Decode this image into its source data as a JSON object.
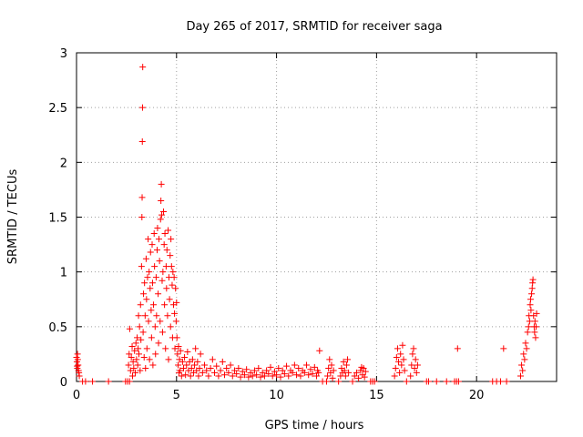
{
  "chart_data": {
    "type": "scatter",
    "title": "Day 265 of 2017, SRMTID for receiver saga",
    "xlabel": "GPS time / hours",
    "ylabel": "SRMTID / TECUs",
    "xlim": [
      0,
      24
    ],
    "ylim": [
      0,
      3
    ],
    "xticks": [
      0,
      5,
      10,
      15,
      20
    ],
    "xtick_labels": [
      "0",
      "5",
      "10",
      "15",
      "20"
    ],
    "yticks": [
      0,
      0.5,
      1,
      1.5,
      2,
      2.5,
      3
    ],
    "ytick_labels": [
      "0",
      "0.5",
      "1",
      "1.5",
      "2",
      "2.5",
      "3"
    ],
    "grid": true,
    "marker": "plus",
    "series": [
      {
        "name": "SRMTID",
        "color": "#ff0000",
        "points": [
          [
            0.0,
            0.22
          ],
          [
            0.02,
            0.18
          ],
          [
            0.04,
            0.12
          ],
          [
            0.06,
            0.2
          ],
          [
            0.08,
            0.15
          ],
          [
            0.1,
            0.1
          ],
          [
            0.12,
            0.08
          ],
          [
            0.14,
            0.05
          ],
          [
            0.05,
            0.25
          ],
          [
            0.03,
            0.14
          ],
          [
            0.3,
            0.0
          ],
          [
            0.45,
            0.0
          ],
          [
            0.8,
            0.0
          ],
          [
            1.6,
            0.0
          ],
          [
            2.45,
            0.0
          ],
          [
            2.55,
            0.0
          ],
          [
            2.65,
            0.0
          ],
          [
            2.6,
            0.15
          ],
          [
            2.63,
            0.25
          ],
          [
            2.66,
            0.48
          ],
          [
            2.7,
            0.1
          ],
          [
            2.74,
            0.22
          ],
          [
            2.78,
            0.32
          ],
          [
            2.8,
            0.05
          ],
          [
            2.83,
            0.18
          ],
          [
            2.86,
            0.12
          ],
          [
            2.9,
            0.28
          ],
          [
            2.94,
            0.08
          ],
          [
            2.97,
            0.35
          ],
          [
            3.0,
            0.2
          ],
          [
            3.03,
            0.4
          ],
          [
            3.06,
            0.15
          ],
          [
            3.08,
            0.3
          ],
          [
            3.1,
            0.6
          ],
          [
            3.12,
            0.25
          ],
          [
            3.15,
            0.5
          ],
          [
            3.18,
            0.1
          ],
          [
            3.2,
            0.7
          ],
          [
            3.22,
            0.38
          ],
          [
            3.25,
            1.05
          ],
          [
            3.27,
            1.5
          ],
          [
            3.28,
            1.68
          ],
          [
            3.29,
            2.19
          ],
          [
            3.3,
            2.5
          ],
          [
            3.31,
            2.87
          ],
          [
            3.33,
            0.45
          ],
          [
            3.35,
            0.8
          ],
          [
            3.38,
            0.22
          ],
          [
            3.4,
            0.9
          ],
          [
            3.43,
            0.6
          ],
          [
            3.45,
            0.12
          ],
          [
            3.48,
            1.12
          ],
          [
            3.5,
            0.75
          ],
          [
            3.52,
            0.3
          ],
          [
            3.55,
            0.95
          ],
          [
            3.58,
            1.3
          ],
          [
            3.6,
            0.55
          ],
          [
            3.63,
            1.0
          ],
          [
            3.65,
            0.2
          ],
          [
            3.68,
            0.85
          ],
          [
            3.7,
            1.18
          ],
          [
            3.73,
            0.65
          ],
          [
            3.75,
            0.4
          ],
          [
            3.78,
            1.25
          ],
          [
            3.8,
            0.9
          ],
          [
            3.82,
            0.15
          ],
          [
            3.85,
            0.7
          ],
          [
            3.88,
            1.35
          ],
          [
            3.9,
            1.05
          ],
          [
            3.93,
            0.5
          ],
          [
            3.95,
            0.25
          ],
          [
            3.98,
            0.95
          ],
          [
            4.0,
            0.6
          ],
          [
            4.03,
            1.2
          ],
          [
            4.05,
            1.4
          ],
          [
            4.08,
            0.8
          ],
          [
            4.1,
            0.35
          ],
          [
            4.12,
            1.3
          ],
          [
            4.15,
            1.1
          ],
          [
            4.18,
            0.55
          ],
          [
            4.2,
            1.48
          ],
          [
            4.22,
            1.65
          ],
          [
            4.24,
            1.8
          ],
          [
            4.26,
            1.52
          ],
          [
            4.28,
            0.92
          ],
          [
            4.3,
            0.45
          ],
          [
            4.32,
            1.0
          ],
          [
            4.35,
            1.55
          ],
          [
            4.38,
            1.25
          ],
          [
            4.4,
            0.7
          ],
          [
            4.42,
            1.35
          ],
          [
            4.45,
            0.3
          ],
          [
            4.48,
            1.05
          ],
          [
            4.5,
            0.85
          ],
          [
            4.52,
            1.2
          ],
          [
            4.55,
            0.6
          ],
          [
            4.58,
            1.38
          ],
          [
            4.6,
            0.2
          ],
          [
            4.62,
            0.95
          ],
          [
            4.65,
            0.75
          ],
          [
            4.68,
            1.15
          ],
          [
            4.7,
            0.5
          ],
          [
            4.72,
            1.3
          ],
          [
            4.75,
            1.05
          ],
          [
            4.78,
            0.88
          ],
          [
            4.8,
            0.4
          ],
          [
            4.82,
            1.0
          ],
          [
            4.85,
            0.7
          ],
          [
            4.88,
            0.95
          ],
          [
            4.9,
            0.62
          ],
          [
            4.92,
            0.3
          ],
          [
            4.95,
            0.85
          ],
          [
            4.98,
            0.55
          ],
          [
            5.0,
            0.72
          ],
          [
            5.02,
            0.4
          ],
          [
            5.05,
            0.25
          ],
          [
            5.08,
            0.15
          ],
          [
            5.1,
            0.32
          ],
          [
            5.12,
            0.08
          ],
          [
            5.15,
            0.2
          ],
          [
            5.18,
            0.1
          ],
          [
            5.2,
            0.28
          ],
          [
            5.25,
            0.05
          ],
          [
            5.3,
            0.18
          ],
          [
            5.35,
            0.12
          ],
          [
            5.4,
            0.22
          ],
          [
            5.45,
            0.06
          ],
          [
            5.5,
            0.15
          ],
          [
            5.55,
            0.27
          ],
          [
            5.6,
            0.1
          ],
          [
            5.65,
            0.18
          ],
          [
            5.7,
            0.05
          ],
          [
            5.75,
            0.12
          ],
          [
            5.8,
            0.2
          ],
          [
            5.85,
            0.08
          ],
          [
            5.9,
            0.15
          ],
          [
            5.95,
            0.3
          ],
          [
            6.0,
            0.1
          ],
          [
            6.05,
            0.18
          ],
          [
            6.1,
            0.05
          ],
          [
            6.15,
            0.12
          ],
          [
            6.2,
            0.25
          ],
          [
            6.3,
            0.08
          ],
          [
            6.4,
            0.15
          ],
          [
            6.5,
            0.1
          ],
          [
            6.6,
            0.05
          ],
          [
            6.7,
            0.12
          ],
          [
            6.8,
            0.2
          ],
          [
            6.9,
            0.08
          ],
          [
            7.0,
            0.14
          ],
          [
            7.1,
            0.05
          ],
          [
            7.2,
            0.1
          ],
          [
            7.3,
            0.18
          ],
          [
            7.4,
            0.06
          ],
          [
            7.5,
            0.12
          ],
          [
            7.6,
            0.08
          ],
          [
            7.7,
            0.15
          ],
          [
            7.8,
            0.05
          ],
          [
            7.9,
            0.1
          ],
          [
            8.0,
            0.07
          ],
          [
            8.1,
            0.12
          ],
          [
            8.2,
            0.04
          ],
          [
            8.3,
            0.09
          ],
          [
            8.4,
            0.06
          ],
          [
            8.5,
            0.11
          ],
          [
            8.6,
            0.04
          ],
          [
            8.7,
            0.08
          ],
          [
            8.8,
            0.05
          ],
          [
            8.9,
            0.1
          ],
          [
            9.0,
            0.06
          ],
          [
            9.1,
            0.12
          ],
          [
            9.2,
            0.04
          ],
          [
            9.3,
            0.08
          ],
          [
            9.4,
            0.05
          ],
          [
            9.5,
            0.1
          ],
          [
            9.6,
            0.07
          ],
          [
            9.7,
            0.13
          ],
          [
            9.8,
            0.05
          ],
          [
            9.9,
            0.09
          ],
          [
            10.0,
            0.06
          ],
          [
            10.1,
            0.12
          ],
          [
            10.2,
            0.04
          ],
          [
            10.3,
            0.1
          ],
          [
            10.4,
            0.07
          ],
          [
            10.5,
            0.14
          ],
          [
            10.6,
            0.05
          ],
          [
            10.7,
            0.1
          ],
          [
            10.8,
            0.08
          ],
          [
            10.9,
            0.15
          ],
          [
            11.0,
            0.06
          ],
          [
            11.1,
            0.12
          ],
          [
            11.2,
            0.05
          ],
          [
            11.3,
            0.1
          ],
          [
            11.4,
            0.08
          ],
          [
            11.5,
            0.15
          ],
          [
            11.6,
            0.06
          ],
          [
            11.7,
            0.11
          ],
          [
            11.8,
            0.07
          ],
          [
            11.9,
            0.13
          ],
          [
            12.0,
            0.05
          ],
          [
            12.05,
            0.1
          ],
          [
            12.1,
            0.08
          ],
          [
            12.15,
            0.28
          ],
          [
            12.3,
            0.0
          ],
          [
            12.5,
            0.0
          ],
          [
            12.55,
            0.05
          ],
          [
            12.6,
            0.12
          ],
          [
            12.65,
            0.2
          ],
          [
            12.7,
            0.08
          ],
          [
            12.75,
            0.15
          ],
          [
            12.8,
            0.03
          ],
          [
            12.85,
            0.1
          ],
          [
            13.1,
            0.0
          ],
          [
            13.2,
            0.05
          ],
          [
            13.25,
            0.12
          ],
          [
            13.3,
            0.08
          ],
          [
            13.35,
            0.18
          ],
          [
            13.4,
            0.1
          ],
          [
            13.45,
            0.05
          ],
          [
            13.5,
            0.15
          ],
          [
            13.55,
            0.2
          ],
          [
            13.6,
            0.08
          ],
          [
            13.8,
            0.0
          ],
          [
            13.9,
            0.05
          ],
          [
            14.0,
            0.08
          ],
          [
            14.1,
            0.03
          ],
          [
            14.2,
            0.1
          ],
          [
            14.25,
            0.13
          ],
          [
            14.3,
            0.06
          ],
          [
            14.35,
            0.12
          ],
          [
            14.4,
            0.04
          ],
          [
            14.45,
            0.09
          ],
          [
            14.7,
            0.0
          ],
          [
            14.8,
            0.0
          ],
          [
            14.9,
            0.0
          ],
          [
            15.9,
            0.05
          ],
          [
            15.95,
            0.12
          ],
          [
            16.0,
            0.22
          ],
          [
            16.05,
            0.3
          ],
          [
            16.1,
            0.18
          ],
          [
            16.15,
            0.08
          ],
          [
            16.2,
            0.25
          ],
          [
            16.25,
            0.15
          ],
          [
            16.3,
            0.33
          ],
          [
            16.35,
            0.2
          ],
          [
            16.4,
            0.1
          ],
          [
            16.5,
            0.0
          ],
          [
            16.7,
            0.05
          ],
          [
            16.75,
            0.15
          ],
          [
            16.8,
            0.25
          ],
          [
            16.85,
            0.3
          ],
          [
            16.9,
            0.12
          ],
          [
            16.95,
            0.2
          ],
          [
            17.0,
            0.08
          ],
          [
            17.05,
            0.15
          ],
          [
            17.5,
            0.0
          ],
          [
            17.6,
            0.0
          ],
          [
            18.0,
            0.0
          ],
          [
            18.5,
            0.0
          ],
          [
            18.9,
            0.0
          ],
          [
            19.0,
            0.0
          ],
          [
            19.05,
            0.3
          ],
          [
            19.1,
            0.0
          ],
          [
            20.8,
            0.0
          ],
          [
            21.0,
            0.0
          ],
          [
            21.2,
            0.0
          ],
          [
            21.35,
            0.3
          ],
          [
            21.5,
            0.0
          ],
          [
            22.2,
            0.05
          ],
          [
            22.25,
            0.15
          ],
          [
            22.3,
            0.1
          ],
          [
            22.35,
            0.25
          ],
          [
            22.4,
            0.2
          ],
          [
            22.45,
            0.35
          ],
          [
            22.5,
            0.3
          ],
          [
            22.55,
            0.45
          ],
          [
            22.6,
            0.5
          ],
          [
            22.62,
            0.6
          ],
          [
            22.65,
            0.55
          ],
          [
            22.68,
            0.7
          ],
          [
            22.7,
            0.75
          ],
          [
            22.72,
            0.65
          ],
          [
            22.75,
            0.8
          ],
          [
            22.78,
            0.85
          ],
          [
            22.8,
            0.9
          ],
          [
            22.82,
            0.93
          ],
          [
            22.85,
            0.6
          ],
          [
            22.88,
            0.5
          ],
          [
            22.9,
            0.45
          ],
          [
            22.92,
            0.55
          ],
          [
            22.95,
            0.4
          ],
          [
            22.98,
            0.5
          ],
          [
            23.0,
            0.62
          ]
        ]
      }
    ]
  }
}
